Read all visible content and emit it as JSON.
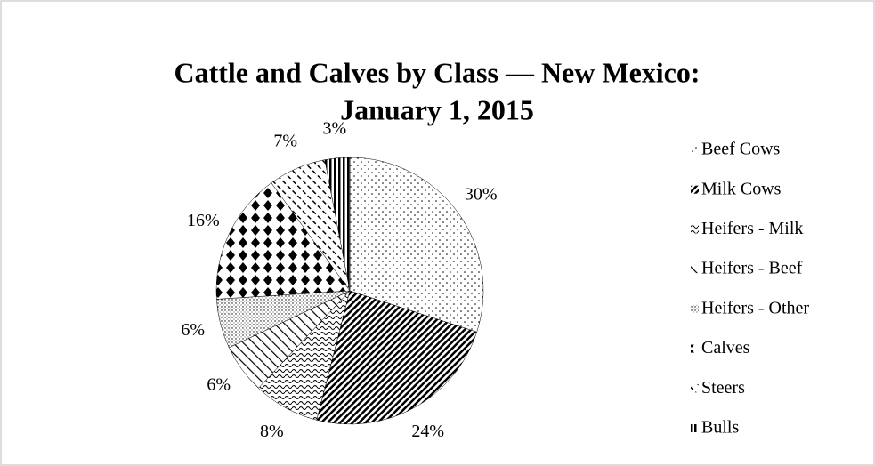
{
  "chart_data": {
    "type": "pie",
    "title": "Cattle and Calves by Class — New Mexico:",
    "subtitle": "January 1, 2015",
    "categories": [
      "Beef Cows",
      "Milk Cows",
      "Heifers - Milk",
      "Heifers - Beef",
      "Heifers - Other",
      "Calves",
      "Steers",
      "Bulls"
    ],
    "values": [
      30,
      24,
      8,
      6,
      6,
      16,
      7,
      3
    ],
    "value_labels": [
      "30%",
      "24%",
      "8%",
      "6%",
      "6%",
      "16%",
      "7%",
      "3%"
    ],
    "legend": "right"
  }
}
